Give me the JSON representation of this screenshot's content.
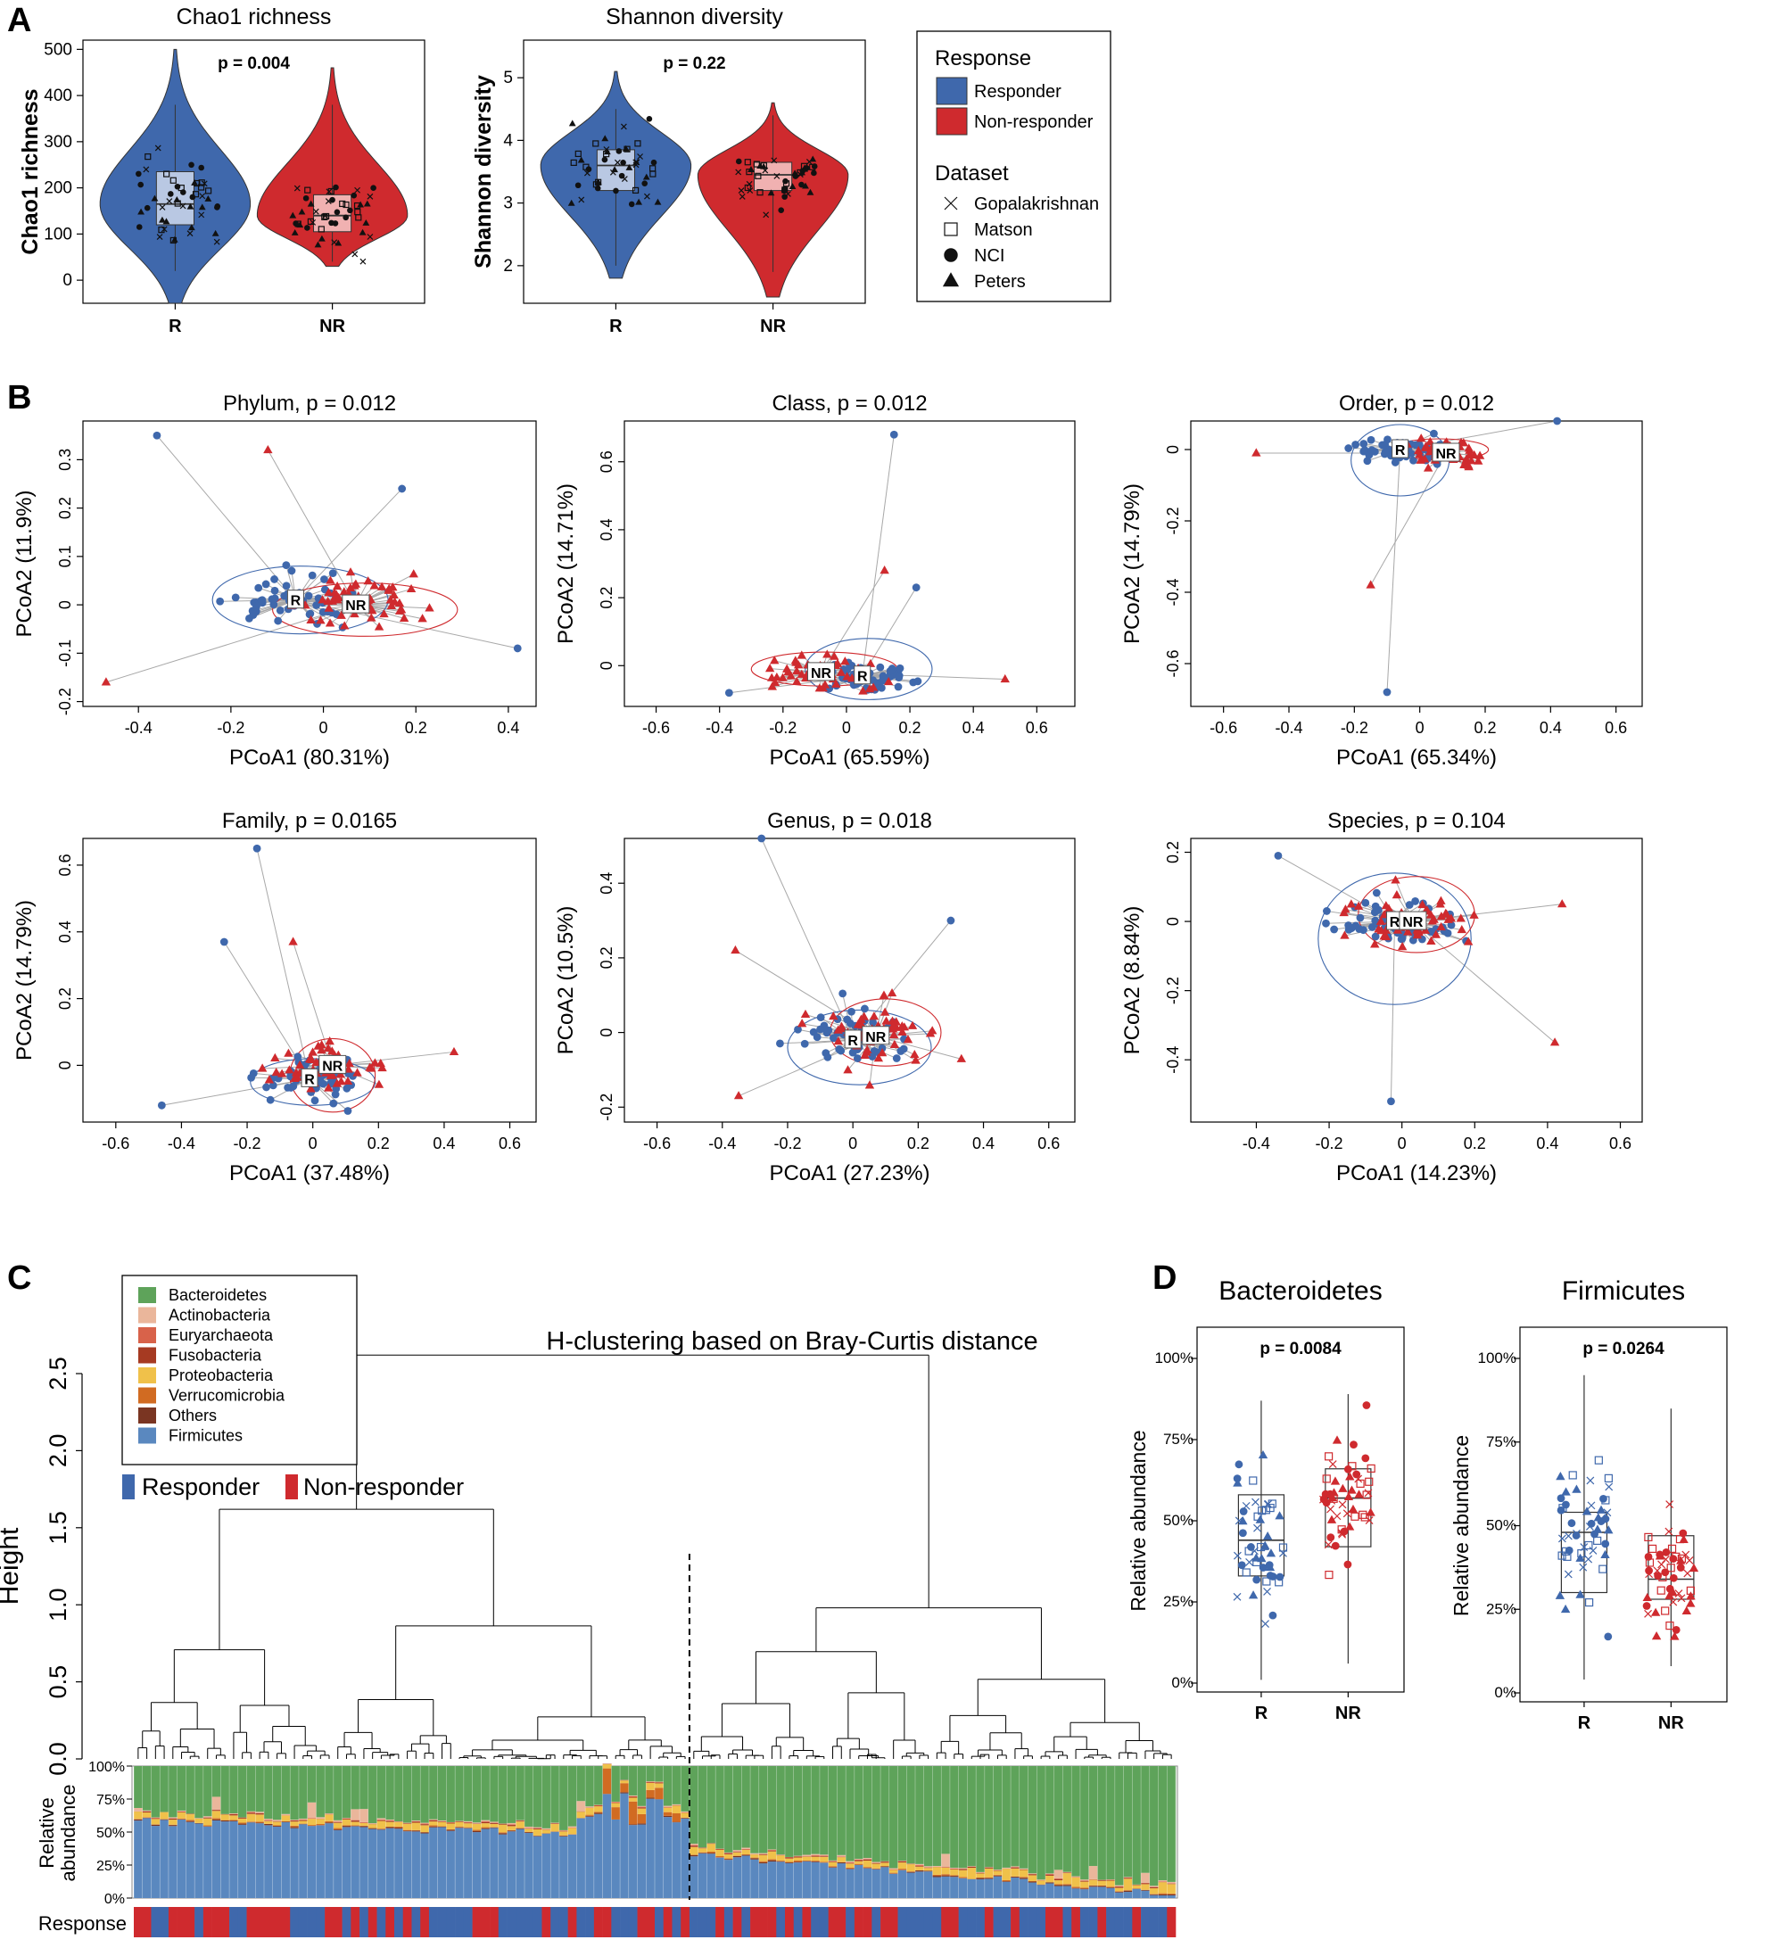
{
  "panels": {
    "A": "A",
    "B": "B",
    "C": "C",
    "D": "D"
  },
  "colors": {
    "responder": "#3f68ac",
    "non_responder": "#cf2a2e",
    "responder_light": "#b9c8e3",
    "non_responder_light": "#f0b1b1"
  },
  "legend_A": {
    "response_title": "Response",
    "responder": "Responder",
    "non_responder": "Non-responder",
    "dataset_title": "Dataset",
    "datasets": [
      {
        "label": "Gopalakrishnan",
        "shape": "cross"
      },
      {
        "label": "Matson",
        "shape": "square"
      },
      {
        "label": "NCI",
        "shape": "circle"
      },
      {
        "label": "Peters",
        "shape": "triangle"
      }
    ]
  },
  "chart_data": [
    {
      "id": "chao1",
      "type": "violin",
      "title": "Chao1 richness",
      "pvalue": "p = 0.004",
      "ylabel": "Chao1 richness",
      "categories": [
        "R",
        "NR"
      ],
      "ylim": [
        -50,
        520
      ],
      "yticks": [
        0,
        100,
        200,
        300,
        400,
        500
      ],
      "box": {
        "R": {
          "q1": 120,
          "median": 165,
          "q3": 235,
          "min": 20,
          "max": 380
        },
        "NR": {
          "q1": 105,
          "median": 140,
          "q3": 185,
          "min": 40,
          "max": 380
        }
      },
      "violin_range": {
        "R": [
          -50,
          500
        ],
        "NR": [
          30,
          460
        ]
      }
    },
    {
      "id": "shannon",
      "type": "violin",
      "title": "Shannon diversity",
      "pvalue": "p = 0.22",
      "ylabel": "Shannon diversity",
      "categories": [
        "R",
        "NR"
      ],
      "ylim": [
        1.4,
        5.6
      ],
      "yticks": [
        2,
        3,
        4,
        5
      ],
      "box": {
        "R": {
          "q1": 3.2,
          "median": 3.6,
          "q3": 3.85,
          "min": 2.0,
          "max": 4.5
        },
        "NR": {
          "q1": 3.2,
          "median": 3.45,
          "q3": 3.65,
          "min": 1.9,
          "max": 4.4
        }
      },
      "violin_range": {
        "R": [
          1.8,
          5.1
        ],
        "NR": [
          1.5,
          4.6
        ]
      }
    },
    {
      "id": "phylum",
      "type": "scatter",
      "title": "Phylum, p = 0.012",
      "xlabel": "PCoA1 (80.31%)",
      "ylabel": "PCoA2 (11.9%)",
      "xlim": [
        -0.52,
        0.46
      ],
      "ylim": [
        -0.21,
        0.38
      ],
      "xticks": [
        -0.4,
        -0.2,
        0.0,
        0.2,
        0.4
      ],
      "yticks": [
        -0.2,
        -0.1,
        0.0,
        0.1,
        0.2,
        0.3
      ],
      "centroids": {
        "R": [
          -0.06,
          0.01
        ],
        "NR": [
          0.07,
          0.0
        ]
      },
      "ellipses": {
        "R": [
          -0.05,
          0.01,
          0.19,
          0.07
        ],
        "NR": [
          0.09,
          -0.01,
          0.2,
          0.055
        ]
      },
      "spread": {
        "x": 0.16,
        "y": 0.06
      },
      "outliers": [
        [
          -0.36,
          0.35
        ],
        [
          -0.12,
          0.32
        ],
        [
          0.17,
          0.24
        ],
        [
          -0.47,
          -0.16
        ],
        [
          0.42,
          -0.09
        ]
      ]
    },
    {
      "id": "class",
      "type": "scatter",
      "title": "Class, p = 0.012",
      "xlabel": "PCoA1 (65.59%)",
      "ylabel": "PCoA2 (14.71%)",
      "xlim": [
        -0.7,
        0.72
      ],
      "ylim": [
        -0.12,
        0.72
      ],
      "xticks": [
        -0.6,
        -0.4,
        -0.2,
        0.0,
        0.2,
        0.4,
        0.6
      ],
      "yticks": [
        0.0,
        0.2,
        0.4,
        0.6
      ],
      "centroids": {
        "R": [
          0.05,
          -0.03
        ],
        "NR": [
          -0.08,
          -0.02
        ]
      },
      "ellipses": {
        "R": [
          0.07,
          -0.01,
          0.2,
          0.09
        ],
        "NR": [
          -0.07,
          -0.01,
          0.23,
          0.05
        ]
      },
      "spread": {
        "x": 0.17,
        "y": 0.05
      },
      "outliers": [
        [
          0.15,
          0.68
        ],
        [
          0.12,
          0.28
        ],
        [
          -0.37,
          -0.08
        ],
        [
          0.5,
          -0.04
        ],
        [
          0.22,
          0.23
        ]
      ]
    },
    {
      "id": "order",
      "type": "scatter",
      "title": "Order, p = 0.012",
      "xlabel": "PCoA1 (65.34%)",
      "ylabel": "PCoA2 (14.79%)",
      "xlim": [
        -0.7,
        0.68
      ],
      "ylim": [
        -0.72,
        0.08
      ],
      "xticks": [
        -0.6,
        -0.4,
        -0.2,
        0.0,
        0.2,
        0.4,
        0.6
      ],
      "yticks": [
        -0.6,
        -0.4,
        -0.2,
        0.0
      ],
      "centroids": {
        "R": [
          -0.06,
          0.0
        ],
        "NR": [
          0.08,
          -0.01
        ]
      },
      "ellipses": {
        "R": [
          -0.06,
          -0.03,
          0.15,
          0.1
        ],
        "NR": [
          0.06,
          0.0,
          0.15,
          0.03
        ]
      },
      "spread": {
        "x": 0.15,
        "y": 0.04
      },
      "outliers": [
        [
          -0.1,
          -0.68
        ],
        [
          -0.15,
          -0.38
        ],
        [
          0.42,
          0.08
        ],
        [
          -0.5,
          -0.01
        ]
      ]
    },
    {
      "id": "family",
      "type": "scatter",
      "title": "Family, p = 0.0165",
      "xlabel": "PCoA1 (37.48%)",
      "ylabel": "PCoA2 (14.79%)",
      "xlim": [
        -0.7,
        0.68
      ],
      "ylim": [
        -0.17,
        0.68
      ],
      "xticks": [
        -0.6,
        -0.4,
        -0.2,
        0.0,
        0.2,
        0.4,
        0.6
      ],
      "yticks": [
        0.0,
        0.2,
        0.4,
        0.6
      ],
      "centroids": {
        "R": [
          -0.01,
          -0.04
        ],
        "NR": [
          0.06,
          0.0
        ]
      },
      "ellipses": {
        "R": [
          0.0,
          -0.05,
          0.19,
          0.07
        ],
        "NR": [
          0.06,
          -0.03,
          0.13,
          0.11
        ]
      },
      "spread": {
        "x": 0.16,
        "y": 0.07
      },
      "outliers": [
        [
          -0.17,
          0.65
        ],
        [
          -0.06,
          0.37
        ],
        [
          -0.27,
          0.37
        ],
        [
          0.43,
          0.04
        ],
        [
          -0.46,
          -0.12
        ]
      ]
    },
    {
      "id": "genus",
      "type": "scatter",
      "title": "Genus, p = 0.018",
      "xlabel": "PCoA1 (27.23%)",
      "ylabel": "PCoA2 (10.5%)",
      "xlim": [
        -0.7,
        0.68
      ],
      "ylim": [
        -0.24,
        0.52
      ],
      "xticks": [
        -0.6,
        -0.4,
        -0.2,
        0.0,
        0.2,
        0.4,
        0.6
      ],
      "yticks": [
        -0.2,
        0.0,
        0.2,
        0.4
      ],
      "centroids": {
        "R": [
          0.0,
          -0.02
        ],
        "NR": [
          0.07,
          -0.01
        ]
      },
      "ellipses": {
        "R": [
          0.02,
          -0.04,
          0.22,
          0.1
        ],
        "NR": [
          0.1,
          0.0,
          0.17,
          0.09
        ]
      },
      "spread": {
        "x": 0.17,
        "y": 0.1
      },
      "outliers": [
        [
          -0.28,
          0.52
        ],
        [
          -0.36,
          0.22
        ],
        [
          0.3,
          0.3
        ],
        [
          -0.35,
          -0.17
        ]
      ]
    },
    {
      "id": "species",
      "type": "scatter",
      "title": "Species, p = 0.104",
      "xlabel": "PCoA1 (14.23%)",
      "ylabel": "PCoA2 (8.84%)",
      "xlim": [
        -0.58,
        0.66
      ],
      "ylim": [
        -0.58,
        0.24
      ],
      "xticks": [
        -0.4,
        -0.2,
        0.0,
        0.2,
        0.4,
        0.6
      ],
      "yticks": [
        -0.4,
        -0.2,
        0.0,
        0.2
      ],
      "centroids": {
        "R": [
          -0.02,
          0.0
        ],
        "NR": [
          0.03,
          0.0
        ]
      },
      "ellipses": {
        "R": [
          -0.02,
          -0.05,
          0.21,
          0.19
        ],
        "NR": [
          0.04,
          0.02,
          0.16,
          0.11
        ]
      },
      "spread": {
        "x": 0.17,
        "y": 0.09
      },
      "outliers": [
        [
          -0.03,
          -0.52
        ],
        [
          0.42,
          -0.35
        ],
        [
          -0.34,
          0.19
        ],
        [
          0.44,
          0.05
        ]
      ]
    },
    {
      "id": "bacteroidetes",
      "type": "box_jitter",
      "title": "Bacteroidetes",
      "pvalue": "p = 0.0084",
      "ylabel": "Relative abundance",
      "categories": [
        "R",
        "NR"
      ],
      "yticks": [
        "0%",
        "25%",
        "50%",
        "75%",
        "100%"
      ],
      "ylim": [
        0,
        1
      ],
      "box": {
        "R": {
          "min": 0.01,
          "q1": 0.33,
          "median": 0.44,
          "q3": 0.58,
          "max": 0.87
        },
        "NR": {
          "min": 0.06,
          "q1": 0.42,
          "median": 0.57,
          "q3": 0.66,
          "max": 0.89
        }
      }
    },
    {
      "id": "firmicutes",
      "type": "box_jitter",
      "title": "Firmicutes",
      "pvalue": "p = 0.0264",
      "ylabel": "Relative abundance",
      "categories": [
        "R",
        "NR"
      ],
      "yticks": [
        "0%",
        "25%",
        "50%",
        "75%",
        "100%"
      ],
      "ylim": [
        0,
        1
      ],
      "box": {
        "R": {
          "min": 0.04,
          "q1": 0.3,
          "median": 0.48,
          "q3": 0.54,
          "max": 0.95
        },
        "NR": {
          "min": 0.08,
          "q1": 0.28,
          "median": 0.34,
          "q3": 0.47,
          "max": 0.85
        }
      }
    },
    {
      "id": "dendrogram",
      "type": "dendrogram_stacked_bar",
      "title": "H-clustering based on Bray-Curtis distance",
      "ylabel": "Height",
      "ylim": [
        0,
        2.5
      ],
      "yticks": [
        "0.0",
        "0.5",
        "1.0",
        "1.5",
        "2.0",
        "2.5"
      ],
      "bar_ylabel": "Relative abundance",
      "bar_yticks": [
        "0%",
        "25%",
        "50%",
        "75%",
        "100%"
      ],
      "response_label": "Response",
      "n_samples": 120,
      "split_index": 64,
      "root_height": 2.62,
      "left_height": 1.62,
      "right_height": 0.98,
      "taxa": [
        {
          "name": "Bacteroidetes",
          "color": "#5ea35a"
        },
        {
          "name": "Actinobacteria",
          "color": "#eab69b"
        },
        {
          "name": "Euryarchaeota",
          "color": "#d8624a"
        },
        {
          "name": "Fusobacteria",
          "color": "#a63a22"
        },
        {
          "name": "Proteobacteria",
          "color": "#f0c14a"
        },
        {
          "name": "Verrucomicrobia",
          "color": "#d16b22"
        },
        {
          "name": "Others",
          "color": "#7a3522"
        },
        {
          "name": "Firmicutes",
          "color": "#5a88bf"
        }
      ],
      "response_legend": {
        "responder": "Responder",
        "non_responder": "Non-responder"
      }
    }
  ]
}
